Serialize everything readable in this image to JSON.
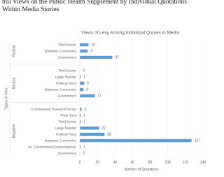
{
  "caption": [
    "tral Views on the Public Health Supplement by Individual Quotations",
    "Within Media Stories"
  ],
  "chart_data": {
    "type": "bar",
    "orientation": "horizontal",
    "title": "Views of Levy Among Individual Quotes in Media",
    "x_label": "Number of Quotations",
    "y_label": "Types of View",
    "color": "#5b9bd5",
    "grid": true,
    "xlim": [
      0,
      140
    ],
    "xticks": [
      0,
      20,
      40,
      60,
      80,
      100,
      120,
      140
    ],
    "groups": [
      {
        "name": "Positive",
        "categories": [
          "Third Sector",
          "Business Community",
          "Government"
        ],
        "values": [
          10,
          9,
          37
        ]
      },
      {
        "name": "Neutral",
        "categories": [
          "Third Sector",
          "Large Retailer",
          "Political Party",
          "Business Community",
          "Government"
        ],
        "values": [
          0,
          1,
          5,
          4,
          17
        ]
      },
      {
        "name": "Negative",
        "categories": [
          "Comissioned Research Group",
          "Think Tank",
          "Third Sector",
          "Large Retailer",
          "Political Party",
          "Business Community",
          "UK Government (Conservatives)",
          "Government"
        ],
        "values": [
          2,
          1,
          1,
          22,
          28,
          127,
          1,
          0
        ]
      }
    ]
  }
}
